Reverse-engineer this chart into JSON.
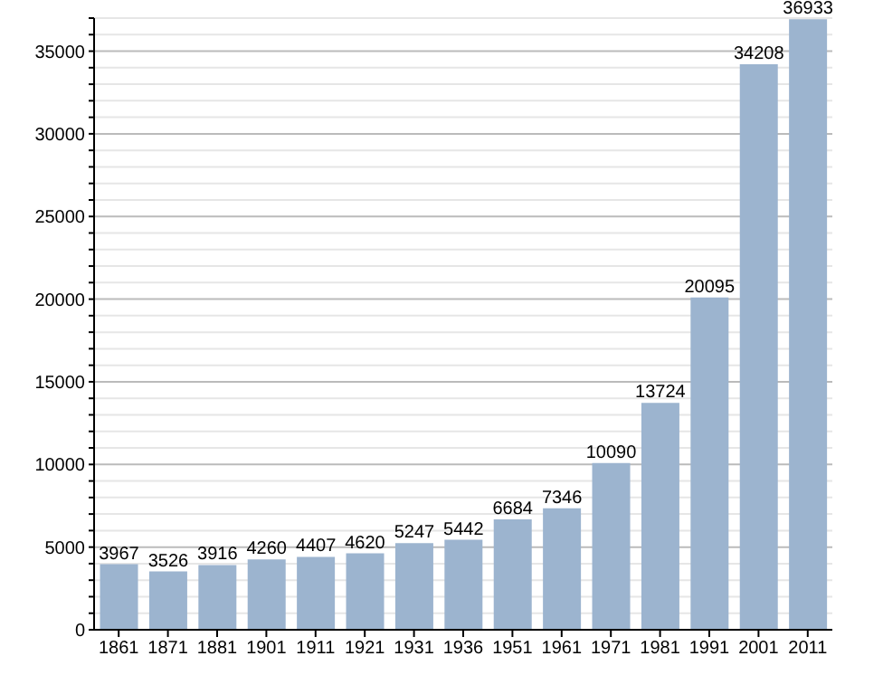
{
  "chart_data": {
    "type": "bar",
    "categories": [
      "1861",
      "1871",
      "1881",
      "1901",
      "1911",
      "1921",
      "1931",
      "1936",
      "1951",
      "1961",
      "1971",
      "1981",
      "1991",
      "2001",
      "2011"
    ],
    "values": [
      3967,
      3526,
      3916,
      4260,
      4407,
      4620,
      5247,
      5442,
      6684,
      7346,
      10090,
      13724,
      20095,
      34208,
      36933
    ],
    "color": "#9cb4cf",
    "data_labels": true,
    "grid": "y",
    "ylim": [
      0,
      37000
    ],
    "yticks": [
      0,
      {
        "value": 1000,
        "label": null
      },
      {
        "value": 2000,
        "label": null
      },
      {
        "value": 3000,
        "label": null
      },
      {
        "value": 4000,
        "label": null
      },
      5000,
      {
        "value": 6000,
        "label": null
      },
      {
        "value": 7000,
        "label": null
      },
      {
        "value": 8000,
        "label": null
      },
      {
        "value": 9000,
        "label": null
      },
      10000,
      {
        "value": 11000,
        "label": null
      },
      {
        "value": 12000,
        "label": null
      },
      {
        "value": 13000,
        "label": null
      },
      {
        "value": 14000,
        "label": null
      },
      15000,
      {
        "value": 16000,
        "label": null
      },
      {
        "value": 17000,
        "label": null
      },
      {
        "value": 18000,
        "label": null
      },
      {
        "value": 19000,
        "label": null
      },
      20000,
      {
        "value": 21000,
        "label": null
      },
      {
        "value": 22000,
        "label": null
      },
      {
        "value": 23000,
        "label": null
      },
      {
        "value": 24000,
        "label": null
      },
      25000,
      {
        "value": 26000,
        "label": null
      },
      {
        "value": 27000,
        "label": null
      },
      {
        "value": 28000,
        "label": null
      },
      {
        "value": 29000,
        "label": null
      },
      30000,
      {
        "value": 31000,
        "label": null
      },
      {
        "value": 32000,
        "label": null
      },
      {
        "value": 33000,
        "label": null
      },
      {
        "value": 34000,
        "label": null
      },
      35000,
      {
        "value": 36000,
        "label": null
      },
      {
        "value": 37000,
        "label": null
      }
    ]
  }
}
